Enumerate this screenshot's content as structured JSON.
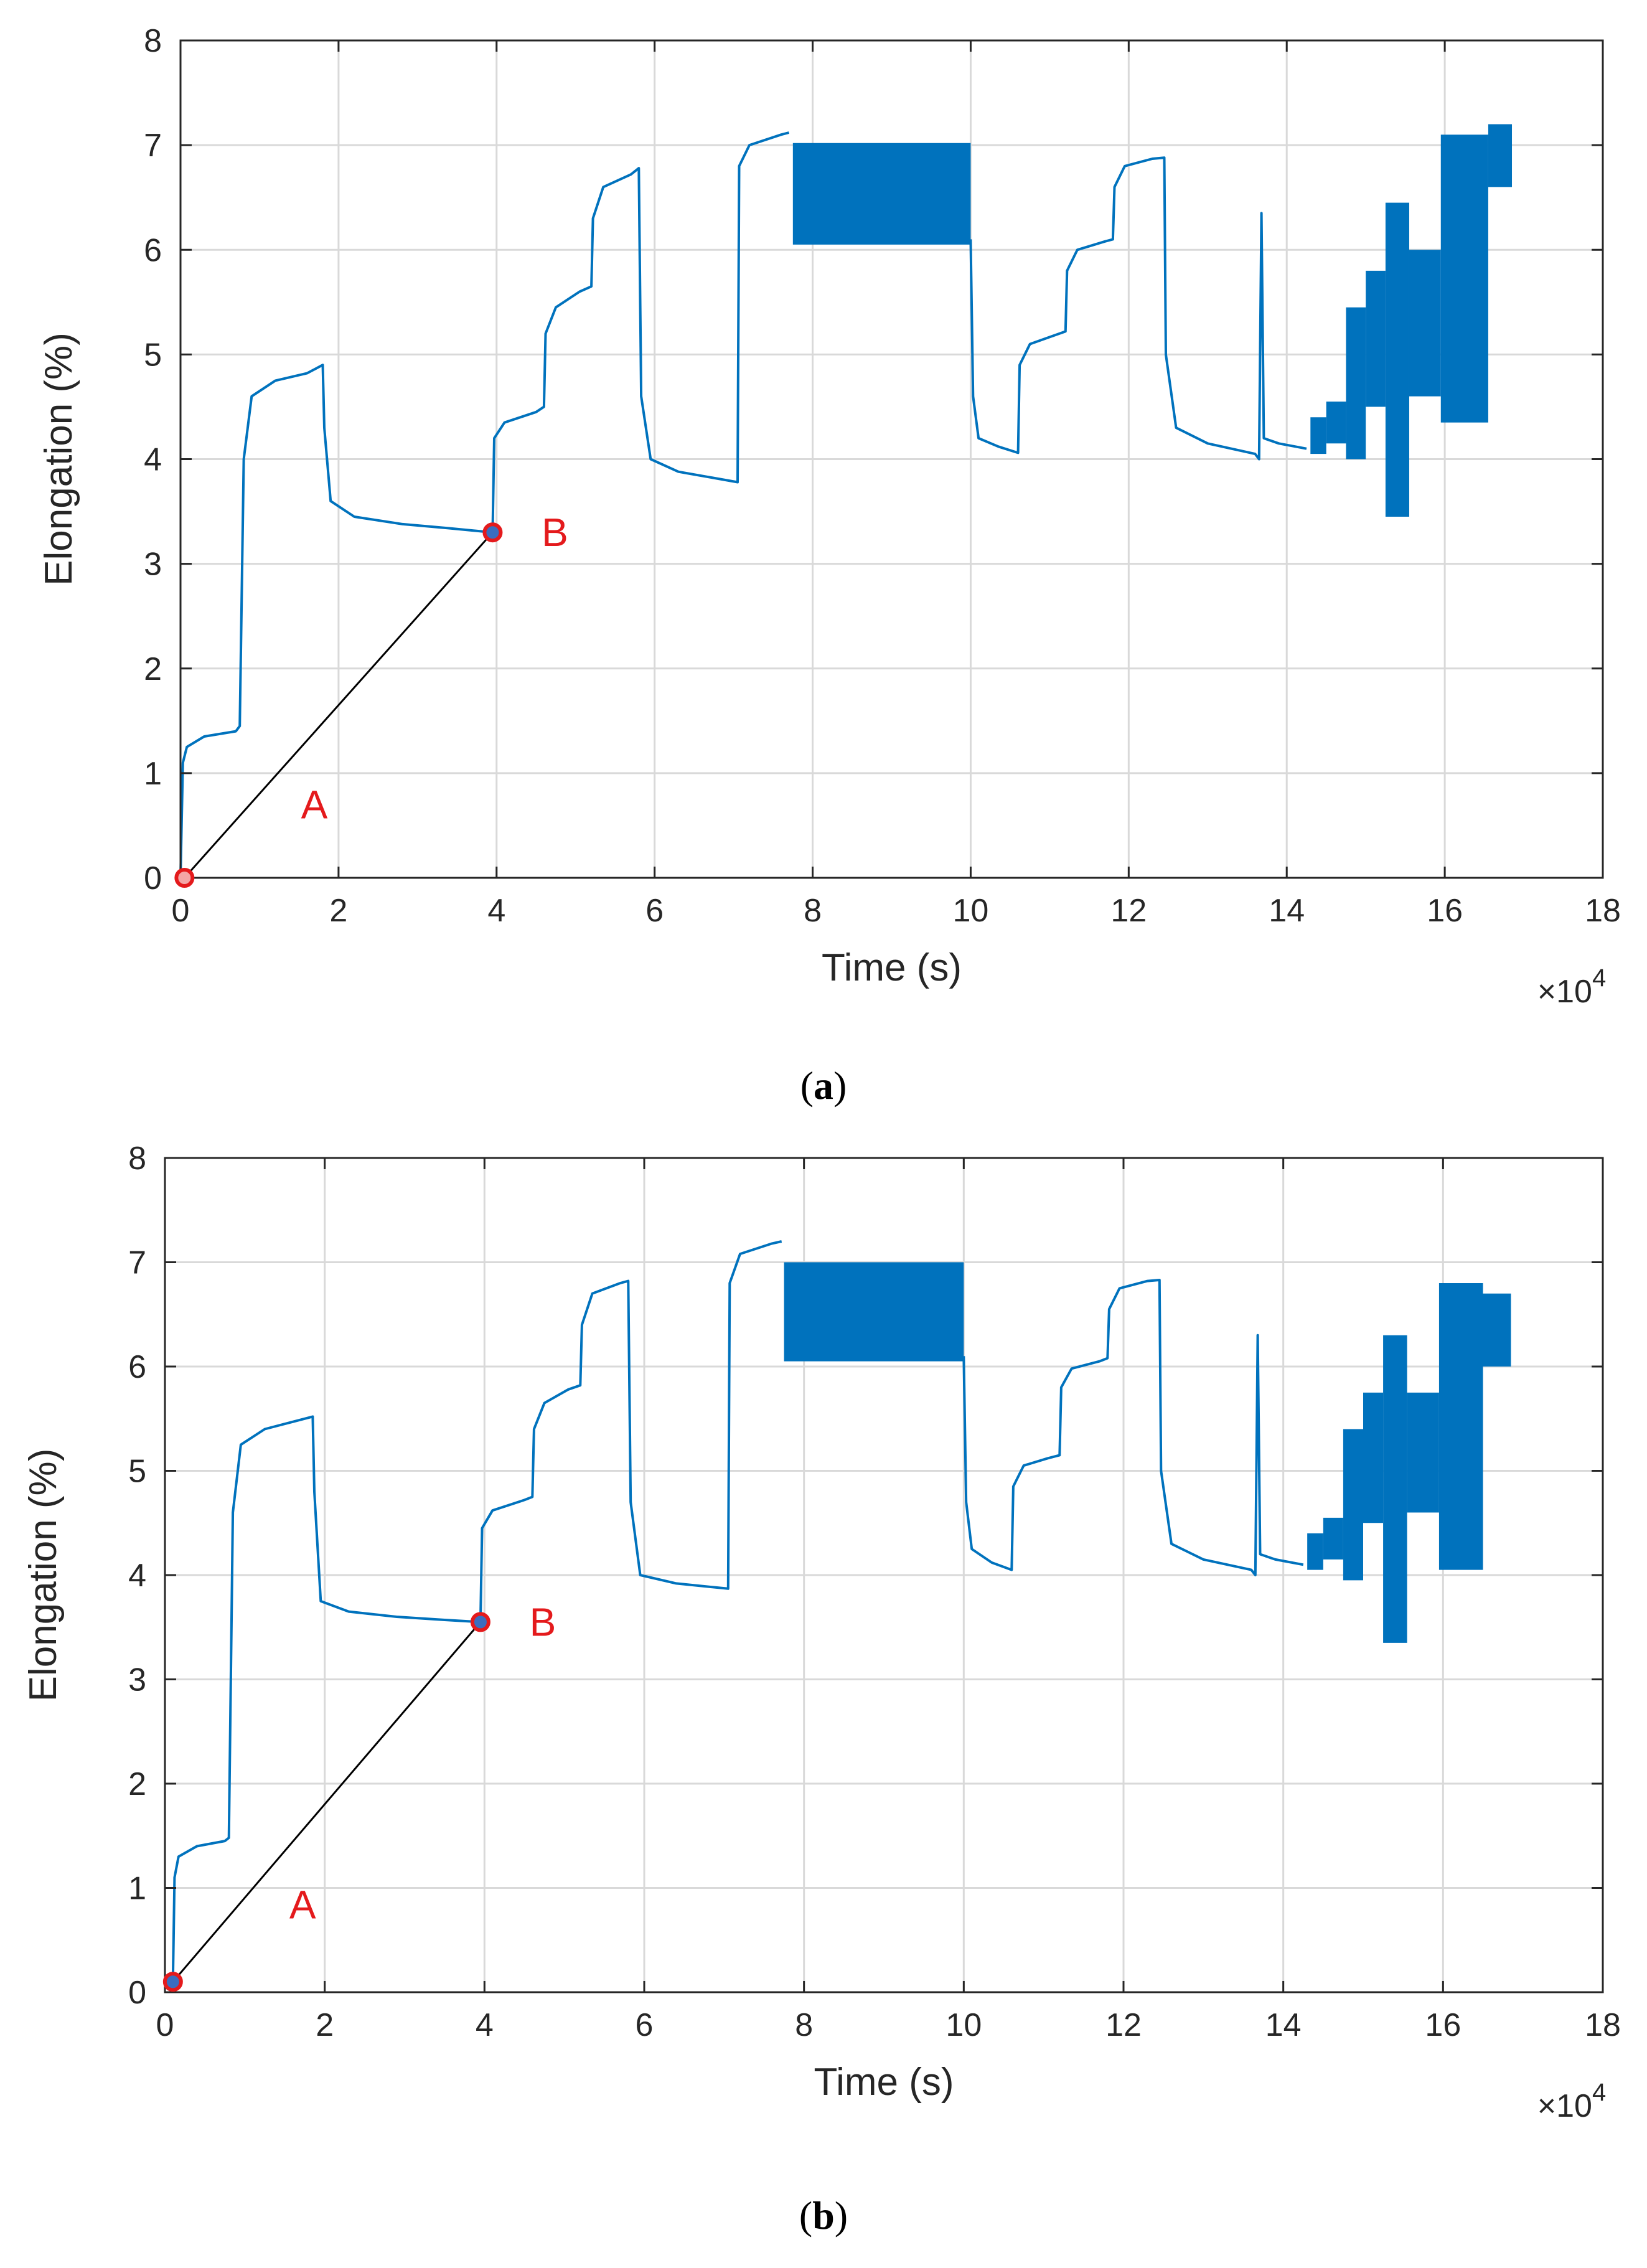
{
  "colors": {
    "line": "#0072bd",
    "grid": "#d9d9d9",
    "axes": "#262626",
    "marker_edge": "#e41a1c",
    "marker_fill_a": "#f4a6a6",
    "marker_fill_b": "#3b6dbf",
    "segment": "#000000",
    "annotation": "#e41a1c"
  },
  "chart_data": [
    {
      "type": "line",
      "panel": "a",
      "caption": {
        "open": "(",
        "letter": "a",
        "close": ")"
      },
      "xlabel": "Time (s)",
      "ylabel": "Elongation (%)",
      "x_exponent_prefix": "×10",
      "x_exponent_power": "4",
      "xlim": [
        0,
        18
      ],
      "ylim": [
        0,
        8
      ],
      "xticks": [
        "0",
        "2",
        "4",
        "6",
        "8",
        "10",
        "12",
        "14",
        "16",
        "18"
      ],
      "yticks": [
        "0",
        "1",
        "2",
        "3",
        "4",
        "5",
        "6",
        "7",
        "8"
      ],
      "grid": true,
      "series": [
        {
          "name": "Elongation",
          "points": [
            [
              0,
              0
            ],
            [
              0.03,
              1.1
            ],
            [
              0.08,
              1.25
            ],
            [
              0.3,
              1.35
            ],
            [
              0.7,
              1.4
            ],
            [
              0.75,
              1.45
            ],
            [
              0.8,
              4.0
            ],
            [
              0.9,
              4.6
            ],
            [
              1.2,
              4.75
            ],
            [
              1.6,
              4.82
            ],
            [
              1.8,
              4.9
            ],
            [
              1.82,
              4.3
            ],
            [
              1.9,
              3.6
            ],
            [
              2.2,
              3.45
            ],
            [
              2.8,
              3.38
            ],
            [
              3.4,
              3.34
            ],
            [
              3.95,
              3.3
            ],
            [
              3.97,
              4.2
            ],
            [
              4.1,
              4.35
            ],
            [
              4.5,
              4.45
            ],
            [
              4.6,
              4.5
            ],
            [
              4.62,
              5.2
            ],
            [
              4.75,
              5.45
            ],
            [
              5.05,
              5.6
            ],
            [
              5.2,
              5.65
            ],
            [
              5.22,
              6.3
            ],
            [
              5.35,
              6.6
            ],
            [
              5.7,
              6.72
            ],
            [
              5.8,
              6.78
            ],
            [
              5.83,
              4.6
            ],
            [
              5.95,
              4.0
            ],
            [
              6.3,
              3.88
            ],
            [
              7.05,
              3.78
            ],
            [
              7.07,
              6.8
            ],
            [
              7.2,
              7.0
            ],
            [
              7.6,
              7.1
            ],
            [
              7.7,
              7.12
            ]
          ],
          "bands": [
            {
              "x": [
                7.75,
                10.0
              ],
              "y_low": 6.05,
              "y_high": 7.02
            }
          ],
          "points2": [
            [
              10.0,
              6.1
            ],
            [
              10.03,
              4.6
            ],
            [
              10.1,
              4.2
            ],
            [
              10.35,
              4.12
            ],
            [
              10.6,
              4.06
            ],
            [
              10.62,
              4.9
            ],
            [
              10.75,
              5.1
            ],
            [
              11.05,
              5.18
            ],
            [
              11.2,
              5.22
            ],
            [
              11.22,
              5.8
            ],
            [
              11.35,
              6.0
            ],
            [
              11.7,
              6.08
            ],
            [
              11.8,
              6.1
            ],
            [
              11.82,
              6.6
            ],
            [
              11.95,
              6.8
            ],
            [
              12.3,
              6.87
            ],
            [
              12.45,
              6.88
            ],
            [
              12.47,
              5.0
            ],
            [
              12.6,
              4.3
            ],
            [
              13.0,
              4.15
            ],
            [
              13.6,
              4.05
            ],
            [
              13.65,
              4.0
            ],
            [
              13.68,
              6.35
            ],
            [
              13.71,
              4.2
            ],
            [
              13.9,
              4.15
            ],
            [
              14.25,
              4.1
            ]
          ],
          "blocks": [
            {
              "x": [
                14.3,
                14.5
              ],
              "y": [
                4.05,
                4.4
              ]
            },
            {
              "x": [
                14.5,
                14.75
              ],
              "y": [
                4.15,
                4.55
              ]
            },
            {
              "x": [
                14.75,
                15.0
              ],
              "y": [
                4.0,
                5.45
              ]
            },
            {
              "x": [
                15.0,
                15.25
              ],
              "y": [
                4.5,
                5.8
              ]
            },
            {
              "x": [
                15.25,
                15.55
              ],
              "y": [
                3.45,
                6.45
              ]
            },
            {
              "x": [
                15.55,
                15.95
              ],
              "y": [
                4.6,
                6.0
              ]
            },
            {
              "x": [
                15.95,
                16.55
              ],
              "y": [
                4.35,
                7.1
              ]
            },
            {
              "x": [
                16.55,
                16.85
              ],
              "y": [
                6.6,
                7.2
              ]
            }
          ]
        }
      ],
      "segment": {
        "from": [
          0.05,
          0.0
        ],
        "to": [
          3.95,
          3.3
        ],
        "label_start": "A",
        "label_end": "B"
      }
    },
    {
      "type": "line",
      "panel": "b",
      "caption": {
        "open": "(",
        "letter": "b",
        "close": ")"
      },
      "xlabel": "Time (s)",
      "ylabel": "Elongation (%)",
      "x_exponent_prefix": "×10",
      "x_exponent_power": "4",
      "xlim": [
        0,
        18
      ],
      "ylim": [
        0,
        8
      ],
      "xticks": [
        "0",
        "2",
        "4",
        "6",
        "8",
        "10",
        "12",
        "14",
        "16",
        "18"
      ],
      "yticks": [
        "0",
        "1",
        "2",
        "3",
        "4",
        "5",
        "6",
        "7",
        "8"
      ],
      "grid": true,
      "series": [
        {
          "name": "Elongation",
          "points": [
            [
              0.1,
              0.1
            ],
            [
              0.12,
              1.1
            ],
            [
              0.17,
              1.3
            ],
            [
              0.4,
              1.4
            ],
            [
              0.75,
              1.45
            ],
            [
              0.8,
              1.48
            ],
            [
              0.85,
              4.6
            ],
            [
              0.95,
              5.25
            ],
            [
              1.25,
              5.4
            ],
            [
              1.6,
              5.47
            ],
            [
              1.85,
              5.52
            ],
            [
              1.87,
              4.8
            ],
            [
              1.95,
              3.75
            ],
            [
              2.3,
              3.65
            ],
            [
              2.9,
              3.6
            ],
            [
              3.5,
              3.57
            ],
            [
              3.95,
              3.55
            ],
            [
              3.97,
              4.45
            ],
            [
              4.1,
              4.62
            ],
            [
              4.5,
              4.72
            ],
            [
              4.6,
              4.75
            ],
            [
              4.62,
              5.4
            ],
            [
              4.75,
              5.65
            ],
            [
              5.05,
              5.78
            ],
            [
              5.2,
              5.82
            ],
            [
              5.22,
              6.4
            ],
            [
              5.35,
              6.7
            ],
            [
              5.7,
              6.8
            ],
            [
              5.8,
              6.82
            ],
            [
              5.83,
              4.7
            ],
            [
              5.95,
              4.0
            ],
            [
              6.4,
              3.92
            ],
            [
              7.05,
              3.87
            ],
            [
              7.07,
              6.8
            ],
            [
              7.2,
              7.08
            ],
            [
              7.6,
              7.18
            ],
            [
              7.72,
              7.2
            ]
          ],
          "bands": [
            {
              "x": [
                7.75,
                10.0
              ],
              "y_low": 6.05,
              "y_high": 7.0
            }
          ],
          "points2": [
            [
              10.0,
              6.1
            ],
            [
              10.03,
              4.7
            ],
            [
              10.1,
              4.25
            ],
            [
              10.35,
              4.12
            ],
            [
              10.6,
              4.05
            ],
            [
              10.62,
              4.85
            ],
            [
              10.75,
              5.05
            ],
            [
              11.05,
              5.12
            ],
            [
              11.2,
              5.15
            ],
            [
              11.22,
              5.8
            ],
            [
              11.35,
              5.98
            ],
            [
              11.7,
              6.05
            ],
            [
              11.8,
              6.08
            ],
            [
              11.82,
              6.55
            ],
            [
              11.95,
              6.75
            ],
            [
              12.3,
              6.82
            ],
            [
              12.45,
              6.83
            ],
            [
              12.47,
              5.0
            ],
            [
              12.6,
              4.3
            ],
            [
              13.0,
              4.15
            ],
            [
              13.6,
              4.05
            ],
            [
              13.65,
              4.0
            ],
            [
              13.68,
              6.3
            ],
            [
              13.71,
              4.2
            ],
            [
              13.9,
              4.15
            ],
            [
              14.25,
              4.1
            ]
          ],
          "blocks": [
            {
              "x": [
                14.3,
                14.5
              ],
              "y": [
                4.05,
                4.4
              ]
            },
            {
              "x": [
                14.5,
                14.75
              ],
              "y": [
                4.15,
                4.55
              ]
            },
            {
              "x": [
                14.75,
                15.0
              ],
              "y": [
                3.95,
                5.4
              ]
            },
            {
              "x": [
                15.0,
                15.25
              ],
              "y": [
                4.5,
                5.75
              ]
            },
            {
              "x": [
                15.25,
                15.55
              ],
              "y": [
                3.35,
                6.3
              ]
            },
            {
              "x": [
                15.55,
                15.95
              ],
              "y": [
                4.6,
                5.75
              ]
            },
            {
              "x": [
                15.95,
                16.5
              ],
              "y": [
                4.05,
                6.8
              ]
            },
            {
              "x": [
                16.5,
                16.85
              ],
              "y": [
                6.0,
                6.7
              ]
            }
          ]
        }
      ],
      "segment": {
        "from": [
          0.1,
          0.1
        ],
        "to": [
          3.95,
          3.55
        ],
        "label_start": "A",
        "label_end": "B"
      }
    }
  ]
}
